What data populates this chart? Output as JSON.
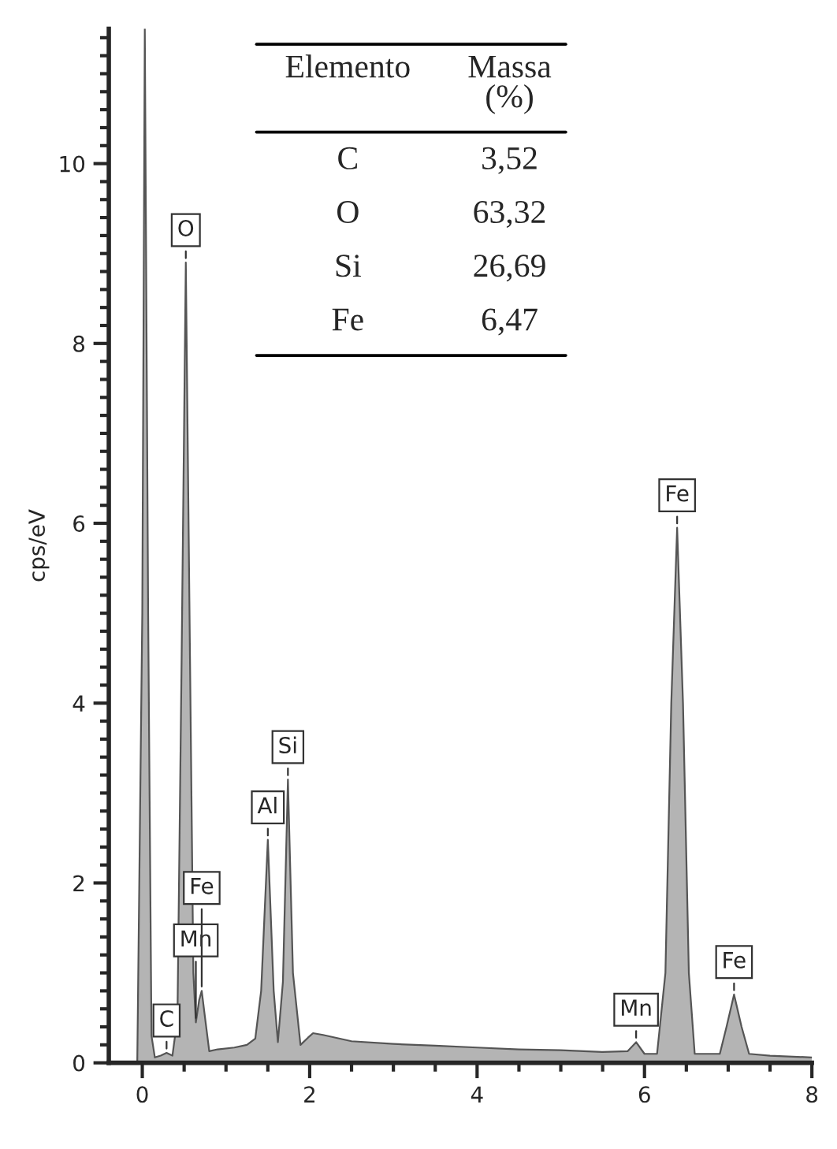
{
  "chart_data": {
    "type": "area",
    "ylabel": "cps/eV",
    "x": [
      -0.06,
      0.0,
      0.03,
      0.07,
      0.11,
      0.15,
      0.22,
      0.29,
      0.36,
      0.42,
      0.47,
      0.52,
      0.57,
      0.61,
      0.64,
      0.68,
      0.71,
      0.75,
      0.8,
      0.9,
      1.1,
      1.25,
      1.35,
      1.42,
      1.5,
      1.57,
      1.62,
      1.68,
      1.74,
      1.8,
      1.89,
      1.98,
      2.04,
      2.16,
      2.5,
      3.0,
      3.5,
      4.0,
      4.5,
      5.0,
      5.5,
      5.8,
      5.9,
      6.0,
      6.15,
      6.25,
      6.32,
      6.39,
      6.46,
      6.53,
      6.6,
      6.9,
      6.98,
      7.07,
      7.16,
      7.25,
      7.5,
      8.0
    ],
    "series": [
      {
        "color": "#b4b4b4",
        "values": [
          0,
          5,
          11.5,
          5,
          0.3,
          0.06,
          0.08,
          0.11,
          0.08,
          0.5,
          4.5,
          8.9,
          4.5,
          1.0,
          0.45,
          0.7,
          0.8,
          0.5,
          0.13,
          0.15,
          0.17,
          0.2,
          0.27,
          0.8,
          2.48,
          0.8,
          0.23,
          0.9,
          3.15,
          1.0,
          0.2,
          0.28,
          0.33,
          0.31,
          0.24,
          0.21,
          0.19,
          0.17,
          0.15,
          0.14,
          0.12,
          0.13,
          0.23,
          0.1,
          0.1,
          1.0,
          4.0,
          5.95,
          4.0,
          1.0,
          0.1,
          0.1,
          0.4,
          0.76,
          0.4,
          0.1,
          0.08,
          0.06
        ]
      }
    ],
    "xlim": [
      -0.4,
      8.0
    ],
    "ylim": [
      0,
      11.5
    ],
    "xticks": [
      0,
      {
        "value": 0.5,
        "label": null
      },
      {
        "value": 1,
        "label": null
      },
      {
        "value": 1.5,
        "label": null
      },
      2,
      {
        "value": 2.5,
        "label": null
      },
      {
        "value": 3,
        "label": null
      },
      {
        "value": 3.5,
        "label": null
      },
      4,
      {
        "value": 4.5,
        "label": null
      },
      {
        "value": 5,
        "label": null
      },
      {
        "value": 5.5,
        "label": null
      },
      6,
      {
        "value": 6.5,
        "label": null
      },
      {
        "value": 7,
        "label": null
      },
      {
        "value": 7.5,
        "label": null
      },
      8
    ],
    "yticks": [
      0,
      {
        "value": 0.2,
        "label": null
      },
      {
        "value": 0.4,
        "label": null
      },
      {
        "value": 0.6,
        "label": null
      },
      {
        "value": 0.8,
        "label": null
      },
      {
        "value": 1,
        "label": null
      },
      {
        "value": 1.2,
        "label": null
      },
      {
        "value": 1.4,
        "label": null
      },
      {
        "value": 1.6,
        "label": null
      },
      {
        "value": 1.8,
        "label": null
      },
      2,
      {
        "value": 2.2,
        "label": null
      },
      {
        "value": 2.4,
        "label": null
      },
      {
        "value": 2.6,
        "label": null
      },
      {
        "value": 2.8,
        "label": null
      },
      {
        "value": 3,
        "label": null
      },
      {
        "value": 3.2,
        "label": null
      },
      {
        "value": 3.4,
        "label": null
      },
      {
        "value": 3.6,
        "label": null
      },
      {
        "value": 3.8,
        "label": null
      },
      4,
      {
        "value": 4.2,
        "label": null
      },
      {
        "value": 4.4,
        "label": null
      },
      {
        "value": 4.6,
        "label": null
      },
      {
        "value": 4.8,
        "label": null
      },
      {
        "value": 5,
        "label": null
      },
      {
        "value": 5.2,
        "label": null
      },
      {
        "value": 5.4,
        "label": null
      },
      {
        "value": 5.6,
        "label": null
      },
      {
        "value": 5.8,
        "label": null
      },
      6,
      {
        "value": 6.2,
        "label": null
      },
      {
        "value": 6.4,
        "label": null
      },
      {
        "value": 6.6,
        "label": null
      },
      {
        "value": 6.8,
        "label": null
      },
      {
        "value": 7,
        "label": null
      },
      {
        "value": 7.2,
        "label": null
      },
      {
        "value": 7.4,
        "label": null
      },
      {
        "value": 7.6,
        "label": null
      },
      {
        "value": 7.8,
        "label": null
      },
      8,
      {
        "value": 8.2,
        "label": null
      },
      {
        "value": 8.4,
        "label": null
      },
      {
        "value": 8.6,
        "label": null
      },
      {
        "value": 8.8,
        "label": null
      },
      {
        "value": 9,
        "label": null
      },
      {
        "value": 9.2,
        "label": null
      },
      {
        "value": 9.4,
        "label": null
      },
      {
        "value": 9.6,
        "label": null
      },
      {
        "value": 9.8,
        "label": null
      },
      10,
      {
        "value": 10.2,
        "label": null
      },
      {
        "value": 10.4,
        "label": null
      },
      {
        "value": 10.6,
        "label": null
      },
      {
        "value": 10.8,
        "label": null
      },
      {
        "value": 11,
        "label": null
      },
      {
        "value": 11.2,
        "label": null
      },
      {
        "value": 11.4,
        "label": null
      }
    ],
    "grid": false,
    "annotations": [
      {
        "text": "C",
        "x": 0.29,
        "y": 0.11
      },
      {
        "text": "O",
        "x": 0.52,
        "y": 8.9
      },
      {
        "text": "Mn",
        "x": 0.64,
        "y": 0.45
      },
      {
        "text": "Fe",
        "x": 0.71,
        "y": 0.8
      },
      {
        "text": "Al",
        "x": 1.5,
        "y": 2.48
      },
      {
        "text": "Si",
        "x": 1.74,
        "y": 3.15
      },
      {
        "text": "Mn",
        "x": 5.9,
        "y": 0.23
      },
      {
        "text": "Fe",
        "x": 6.39,
        "y": 5.95
      },
      {
        "text": "Fe",
        "x": 7.07,
        "y": 0.76
      },
      "Elemento",
      "Massa\n(%)",
      "C",
      "3,52",
      "O",
      "63,32",
      "Si",
      "26,69",
      "Fe",
      "6,47"
    ]
  }
}
